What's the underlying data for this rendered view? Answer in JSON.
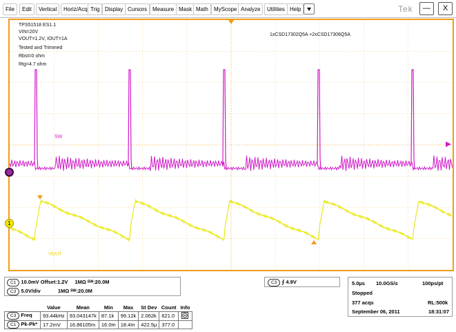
{
  "menu": {
    "items": [
      "File",
      "Edit",
      "Vertical",
      "Horiz/Acq",
      "Trig",
      "Display",
      "Cursors",
      "Measure",
      "Mask",
      "Math",
      "MyScope",
      "Analyze",
      "Utilities",
      "Help"
    ],
    "dropdown_icon": "chevron-down-icon",
    "brand": "Tek",
    "minimize": "—",
    "close": "X"
  },
  "notes": {
    "line1": "TPS51518 ES1.1",
    "line2": "VIN=20V",
    "line3": "VOUT=1.2V, IOUT=1A",
    "line4": "Tested and Trimmed",
    "line5": "Rbst=0 ohm",
    "line6": "Rtg=4.7 ohm",
    "fets": "1xCSD17302Q5A +2xCSD17306Q5A"
  },
  "traces": {
    "sw_label": "SW",
    "vout_label": "VOUT",
    "sw_color": "#d018c8",
    "vout_color": "#e6e600",
    "grid_color": "#f29b17"
  },
  "markers": {
    "ch3": "3",
    "ch1": "1"
  },
  "channels": {
    "c1_badge": "C1",
    "c1_scale": "10.0mV",
    "c1_offset": "Offset:1.2V",
    "c1_impedance": "1MΩ",
    "c1_bw": "ᴮᵂ:20.0M",
    "c3_badge": "C3",
    "c3_scale": "5.0V/div",
    "c3_impedance": "1MΩ",
    "c3_bw": "ᴮᵂ:20.0M"
  },
  "trigger": {
    "badge": "C3",
    "slope": "⨍",
    "level": "4.9V"
  },
  "acquisition": {
    "timebase": "5.0µs",
    "rate": "10.0GS/s",
    "res": "100ps/pt",
    "state": "Stopped",
    "acqs": "377 acqs",
    "rl": "RL:500k",
    "date": "September 06, 2011",
    "time": "18:31:07"
  },
  "measurements": {
    "headers": [
      "Value",
      "Mean",
      "Min",
      "Max",
      "St Dev",
      "Count",
      "Info"
    ],
    "rows": [
      {
        "badge": "C3",
        "name": "Freq",
        "cells": [
          "93.44kHz",
          "93.043147k",
          "87.1k",
          "99.12k",
          "2.062k",
          "621.0"
        ]
      },
      {
        "badge": "C1",
        "name": "Pk-Pk*",
        "cells": [
          "17.2mV",
          "16.86105m",
          "16.0m",
          "18.4m",
          "422.5µ",
          "377.0"
        ]
      }
    ]
  }
}
